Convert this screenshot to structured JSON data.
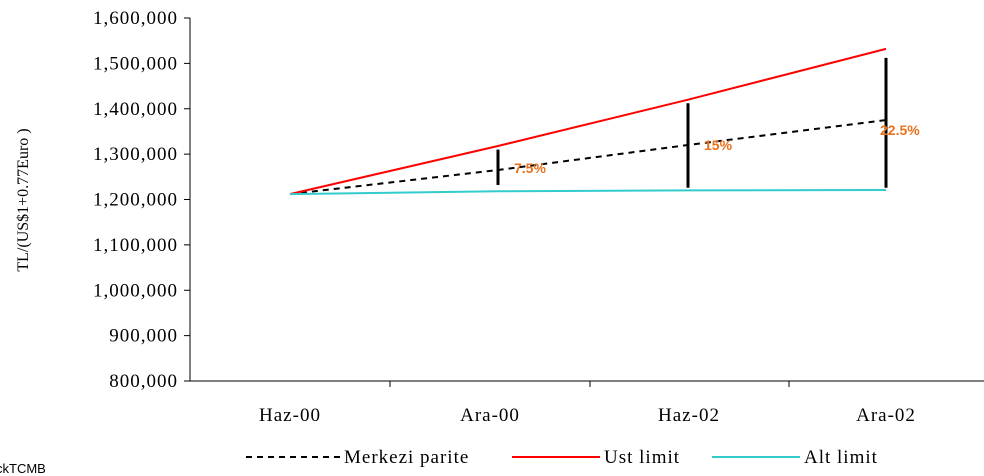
{
  "chart_data": {
    "type": "line",
    "ylabel": "TL/(US$1+0.77Euro )",
    "xlabel": "",
    "ylim": [
      800000,
      1600000
    ],
    "yticks": [
      800000,
      900000,
      1000000,
      1100000,
      1200000,
      1300000,
      1400000,
      1500000,
      1600000
    ],
    "ytick_labels": [
      "800,000",
      "900,000",
      "1,000,000",
      "1,100,000",
      "1,200,000",
      "1,300,000",
      "1,400,000",
      "1,500,000",
      "1,600,000"
    ],
    "categories": [
      "Haz-00",
      "Ara-00",
      "Haz-02",
      "Ara-02"
    ],
    "series": [
      {
        "name": "Merkezi parite",
        "color": "#000000",
        "style": "dashed",
        "points": [
          {
            "x": "Haz-00",
            "y": 1212000
          },
          {
            "x": "Ara-00",
            "y": 1265000
          },
          {
            "x": "Haz-02",
            "y": 1320000
          },
          {
            "x": "Ara-02",
            "y": 1375000
          }
        ]
      },
      {
        "name": "Ust limit",
        "color": "#ff0000",
        "style": "solid",
        "points": [
          {
            "x": "Haz-00",
            "y": 1212000
          },
          {
            "x": "Ara-00",
            "y": 1318000
          },
          {
            "x": "Haz-02",
            "y": 1420000
          },
          {
            "x": "Ara-02",
            "y": 1532000
          }
        ]
      },
      {
        "name": "Alt limit",
        "color": "#33cccc",
        "style": "solid",
        "points": [
          {
            "x": "Haz-00",
            "y": 1212000
          },
          {
            "x": "Ara-00",
            "y": 1218000
          },
          {
            "x": "Haz-02",
            "y": 1220000
          },
          {
            "x": "Ara-02",
            "y": 1221000
          }
        ]
      }
    ],
    "band_bars": [
      {
        "x": "Ara-00",
        "low": 1232000,
        "high": 1310000,
        "label": "7.5%"
      },
      {
        "x": "Haz-02",
        "low": 1226000,
        "high": 1412000,
        "label": "15%"
      },
      {
        "x": "Ara-02",
        "low": 1226000,
        "high": 1512000,
        "label": "22.5%"
      }
    ],
    "annotation_color": "#e8711c",
    "legend_position": "bottom",
    "grid": false
  },
  "footer": {
    "source_text": "ckTCMB"
  }
}
